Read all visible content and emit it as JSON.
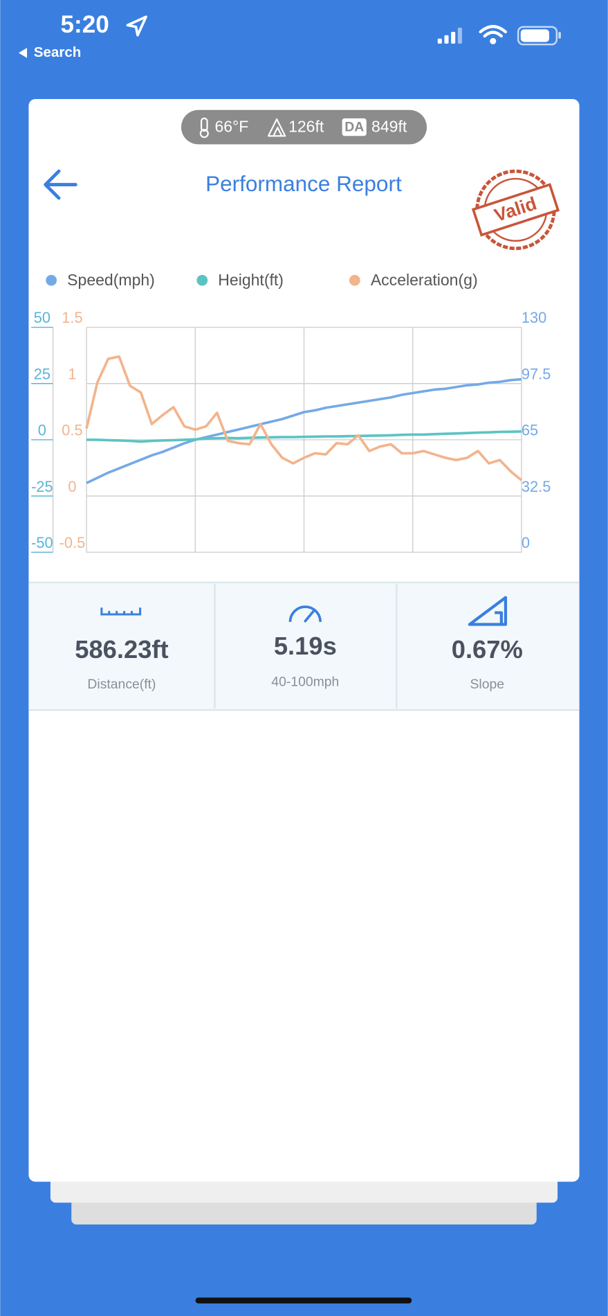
{
  "status_bar": {
    "time": "5:20",
    "back_label": "Search"
  },
  "conditions": {
    "temperature": "66°F",
    "altitude": "126ft",
    "density_altitude_label": "DA",
    "density_altitude": "849ft"
  },
  "header": {
    "title": "Performance Report",
    "stamp": "Valid"
  },
  "chart_data": {
    "type": "line",
    "series": [
      {
        "name": "Speed(mph)",
        "color": "#74a9e6",
        "axis": "y2",
        "values": [
          40,
          43,
          46,
          48.5,
          51,
          53.5,
          56,
          58,
          60.5,
          63,
          65,
          66.5,
          68,
          69.5,
          71,
          72.5,
          74,
          75.5,
          77,
          79,
          81,
          82,
          83.5,
          84.5,
          85.5,
          86.5,
          87.5,
          88.5,
          89.5,
          91,
          92,
          93,
          94,
          94.5,
          95.5,
          96.5,
          97,
          98,
          98.5,
          99.5,
          100
        ]
      },
      {
        "name": "Height(ft)",
        "color": "#5cc3c3",
        "values": [
          0,
          0,
          -0.2,
          -0.3,
          -0.5,
          -0.8,
          -0.5,
          -0.3,
          -0.2,
          0,
          0.2,
          0.5,
          0.7,
          0.8,
          0.7,
          0.9,
          1,
          1.1,
          1.2,
          1.2,
          1.3,
          1.4,
          1.5,
          1.5,
          1.6,
          1.7,
          1.8,
          1.9,
          2.0,
          2.2,
          2.3,
          2.3,
          2.5,
          2.7,
          2.8,
          3.0,
          3.2,
          3.3,
          3.5,
          3.6,
          3.7
        ]
      },
      {
        "name": "Acceleration(g)",
        "color": "#f2b48c",
        "axis": "y3",
        "values": [
          0.6,
          1.01,
          1.22,
          1.24,
          0.98,
          0.92,
          0.64,
          0.72,
          0.79,
          0.62,
          0.59,
          0.62,
          0.74,
          0.49,
          0.47,
          0.46,
          0.64,
          0.46,
          0.34,
          0.29,
          0.34,
          0.38,
          0.37,
          0.47,
          0.46,
          0.54,
          0.4,
          0.44,
          0.46,
          0.38,
          0.38,
          0.4,
          0.37,
          0.34,
          0.32,
          0.34,
          0.4,
          0.29,
          0.32,
          0.22,
          0.14
        ]
      }
    ],
    "ylim": [
      -50,
      50
    ],
    "yticks": [
      -50,
      -25,
      0,
      25,
      50
    ],
    "ytick_color": "#5ab4d6",
    "y2lim": [
      0,
      130
    ],
    "y2ticks": [
      0,
      32.5,
      65,
      97.5,
      130
    ],
    "y2tick_color": "#74a9e6",
    "y3lim": [
      -0.5,
      1.5
    ],
    "y3ticks": [
      -0.5,
      0,
      0.5,
      1,
      1.5
    ],
    "y3tick_color": "#f2b48c",
    "grid": true
  },
  "stats": [
    {
      "value": "586.23ft",
      "label": "Distance(ft)"
    },
    {
      "value": "5.19s",
      "label": "40-100mph"
    },
    {
      "value": "0.67%",
      "label": "Slope"
    }
  ]
}
